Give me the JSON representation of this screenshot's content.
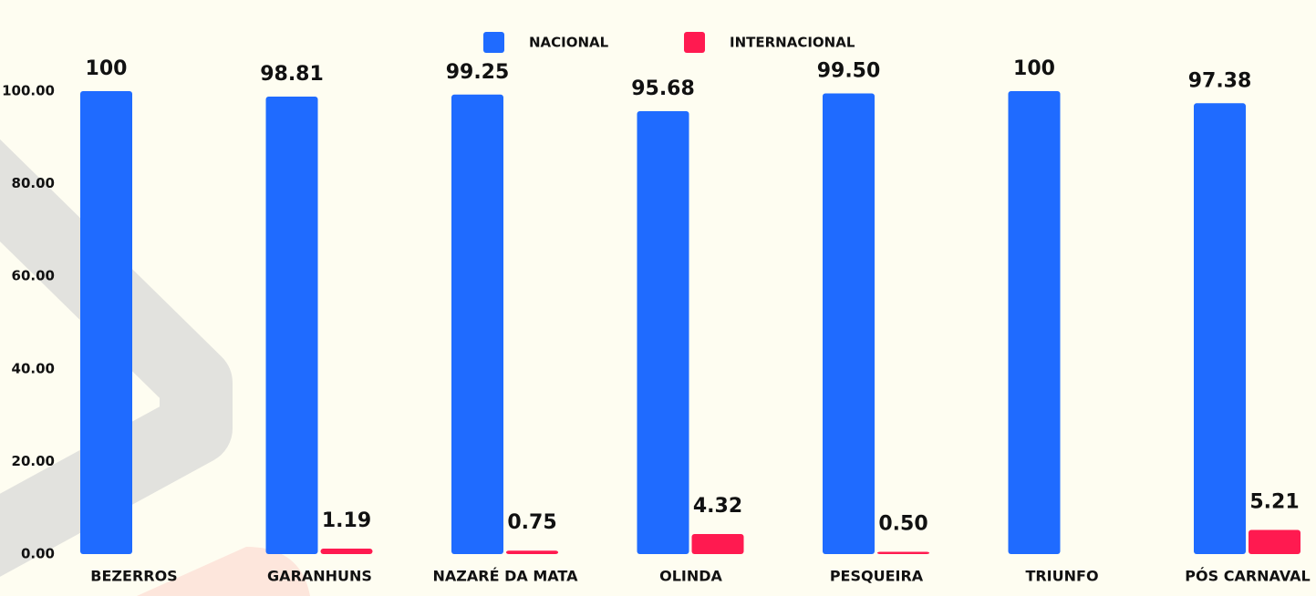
{
  "chart_data": {
    "type": "bar",
    "categories": [
      "BEZERROS",
      "GARANHUNS",
      "NAZARÉ DA MATA",
      "OLINDA",
      "PESQUEIRA",
      "TRIUNFO",
      "PÓS CARNAVAL"
    ],
    "series": [
      {
        "name": "NACIONAL",
        "color": "#1f6bff",
        "values": [
          100,
          98.81,
          99.25,
          95.68,
          99.5,
          100,
          97.38
        ],
        "value_labels": [
          "100",
          "98.81",
          "99.25",
          "95.68",
          "99.50",
          "100",
          "97.38"
        ]
      },
      {
        "name": "INTERNACIONAL",
        "color": "#ff1a50",
        "values": [
          null,
          1.19,
          0.75,
          4.32,
          0.5,
          null,
          5.21
        ],
        "value_labels": [
          null,
          "1.19",
          "0.75",
          "4.32",
          "0.50",
          null,
          "5.21"
        ]
      }
    ],
    "ylim": [
      0,
      100
    ],
    "yticks": [
      {
        "value": 0,
        "label": "0.00"
      },
      {
        "value": 20,
        "label": "20.00"
      },
      {
        "value": 40,
        "label": "40.00"
      },
      {
        "value": 60,
        "label": "60.00"
      },
      {
        "value": 80,
        "label": "80.00"
      },
      {
        "value": 100,
        "label": "100.00"
      }
    ],
    "legend": "top"
  }
}
